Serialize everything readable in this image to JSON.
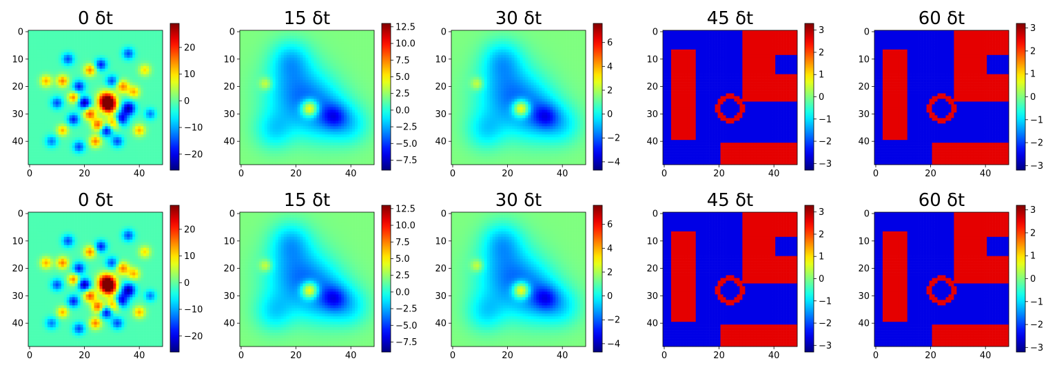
{
  "chart_data": [
    {
      "type": "heatmap",
      "title": "0 δt",
      "row": 1,
      "pattern": "noise",
      "xticks": [
        "0",
        "20",
        "40"
      ],
      "yticks": [
        "0",
        "10",
        "20",
        "30",
        "40"
      ],
      "colorbar": {
        "range": [
          -26,
          29
        ],
        "ticks": [
          "20",
          "10",
          "0",
          "−10",
          "−20"
        ],
        "tick_values": [
          20,
          10,
          0,
          -10,
          -20
        ]
      }
    },
    {
      "type": "heatmap",
      "title": "15 δt",
      "row": 1,
      "pattern": "blobs",
      "xticks": [
        "0",
        "20",
        "40"
      ],
      "yticks": [
        "0",
        "10",
        "20",
        "30",
        "40"
      ],
      "colorbar": {
        "range": [
          -9,
          13
        ],
        "ticks": [
          "12.5",
          "10.0",
          "7.5",
          "5.0",
          "2.5",
          "0.0",
          "−2.5",
          "−5.0",
          "−7.5"
        ],
        "tick_values": [
          12.5,
          10,
          7.5,
          5,
          2.5,
          0,
          -2.5,
          -5,
          -7.5
        ]
      }
    },
    {
      "type": "heatmap",
      "title": "30 δt",
      "row": 1,
      "pattern": "blobs",
      "xticks": [
        "0",
        "20",
        "40"
      ],
      "yticks": [
        "0",
        "10",
        "20",
        "30",
        "40"
      ],
      "colorbar": {
        "range": [
          -4.7,
          7.6
        ],
        "ticks": [
          "6",
          "4",
          "2",
          "0",
          "−2",
          "−4"
        ],
        "tick_values": [
          6,
          4,
          2,
          0,
          -2,
          -4
        ]
      }
    },
    {
      "type": "heatmap",
      "title": "45 δt",
      "row": 1,
      "pattern": "domains",
      "xticks": [
        "0",
        "20",
        "40"
      ],
      "yticks": [
        "0",
        "10",
        "20",
        "30",
        "40"
      ],
      "colorbar": {
        "range": [
          -3.3,
          3.3
        ],
        "ticks": [
          "3",
          "2",
          "1",
          "0",
          "−1",
          "−2",
          "−3"
        ],
        "tick_values": [
          3,
          2,
          1,
          0,
          -1,
          -2,
          -3
        ]
      }
    },
    {
      "type": "heatmap",
      "title": "60 δt",
      "row": 1,
      "pattern": "domains",
      "xticks": [
        "0",
        "20",
        "40"
      ],
      "yticks": [
        "0",
        "10",
        "20",
        "30",
        "40"
      ],
      "colorbar": {
        "range": [
          -3.2,
          3.2
        ],
        "ticks": [
          "3",
          "2",
          "1",
          "0",
          "−1",
          "−2",
          "−3"
        ],
        "tick_values": [
          3,
          2,
          1,
          0,
          -1,
          -2,
          -3
        ]
      }
    },
    {
      "type": "heatmap",
      "title": "0 δt",
      "row": 2,
      "pattern": "noise",
      "xticks": [
        "0",
        "20",
        "40"
      ],
      "yticks": [
        "0",
        "10",
        "20",
        "30",
        "40"
      ],
      "colorbar": {
        "range": [
          -26,
          29
        ],
        "ticks": [
          "20",
          "10",
          "0",
          "−10",
          "−20"
        ],
        "tick_values": [
          20,
          10,
          0,
          -10,
          -20
        ]
      }
    },
    {
      "type": "heatmap",
      "title": "15 δt",
      "row": 2,
      "pattern": "blobs",
      "xticks": [
        "0",
        "20",
        "40"
      ],
      "yticks": [
        "0",
        "10",
        "20",
        "30",
        "40"
      ],
      "colorbar": {
        "range": [
          -9,
          13
        ],
        "ticks": [
          "12.5",
          "10.0",
          "7.5",
          "5.0",
          "2.5",
          "0.0",
          "−2.5",
          "−5.0",
          "−7.5"
        ],
        "tick_values": [
          12.5,
          10,
          7.5,
          5,
          2.5,
          0,
          -2.5,
          -5,
          -7.5
        ]
      }
    },
    {
      "type": "heatmap",
      "title": "30 δt",
      "row": 2,
      "pattern": "blobs",
      "xticks": [
        "0",
        "20",
        "40"
      ],
      "yticks": [
        "0",
        "10",
        "20",
        "30",
        "40"
      ],
      "colorbar": {
        "range": [
          -4.7,
          7.6
        ],
        "ticks": [
          "6",
          "4",
          "2",
          "0",
          "−2",
          "−4"
        ],
        "tick_values": [
          6,
          4,
          2,
          0,
          -2,
          -4
        ]
      }
    },
    {
      "type": "heatmap",
      "title": "45 δt",
      "row": 2,
      "pattern": "domains",
      "xticks": [
        "0",
        "20",
        "40"
      ],
      "yticks": [
        "0",
        "10",
        "20",
        "30",
        "40"
      ],
      "colorbar": {
        "range": [
          -3.3,
          3.3
        ],
        "ticks": [
          "3",
          "2",
          "1",
          "0",
          "−1",
          "−2",
          "−3"
        ],
        "tick_values": [
          3,
          2,
          1,
          0,
          -1,
          -2,
          -3
        ]
      }
    },
    {
      "type": "heatmap",
      "title": "60 δt",
      "row": 2,
      "pattern": "domains",
      "xticks": [
        "0",
        "20",
        "40"
      ],
      "yticks": [
        "0",
        "10",
        "20",
        "30",
        "40"
      ],
      "colorbar": {
        "range": [
          -3.2,
          3.2
        ],
        "ticks": [
          "3",
          "2",
          "1",
          "0",
          "−1",
          "−2",
          "−3"
        ],
        "tick_values": [
          3,
          2,
          1,
          0,
          -1,
          -2,
          -3
        ]
      }
    }
  ],
  "colormap": {
    "name": "jet",
    "stops": [
      "#00007f",
      "#0000ff",
      "#007fff",
      "#00ffff",
      "#7fff7f",
      "#ffff00",
      "#ff7f00",
      "#ff0000",
      "#7f0000"
    ]
  }
}
